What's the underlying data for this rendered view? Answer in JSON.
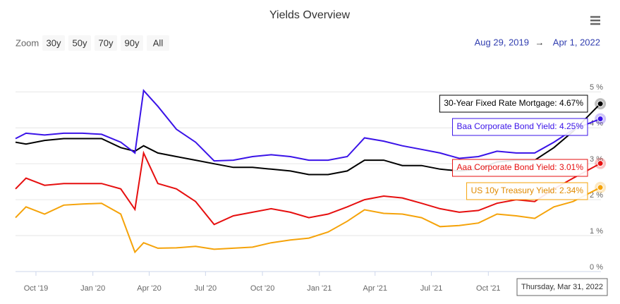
{
  "chart_data": {
    "type": "line",
    "title": "Yields Overview",
    "zoom": {
      "label": "Zoom",
      "buttons": [
        "30y",
        "50y",
        "70y",
        "90y",
        "All"
      ]
    },
    "range": {
      "from": "Aug 29, 2019",
      "arrow": "→",
      "to": "Apr 1, 2022"
    },
    "x": [
      "2019-08-29",
      "2019-09-15",
      "2019-10-15",
      "2019-11-15",
      "2019-12-15",
      "2020-01-15",
      "2020-02-15",
      "2020-03-09",
      "2020-03-23",
      "2020-04-15",
      "2020-05-15",
      "2020-06-15",
      "2020-07-15",
      "2020-08-15",
      "2020-09-15",
      "2020-10-15",
      "2020-11-15",
      "2020-12-15",
      "2021-01-15",
      "2021-02-15",
      "2021-03-15",
      "2021-04-15",
      "2021-05-15",
      "2021-06-15",
      "2021-07-15",
      "2021-08-15",
      "2021-09-15",
      "2021-10-15",
      "2021-11-15",
      "2021-12-15",
      "2022-01-15",
      "2022-02-15",
      "2022-03-31"
    ],
    "xlim": [
      "2019-08-29",
      "2022-04-01"
    ],
    "xticks": [
      {
        "value": "2019-10-01",
        "label": "Oct '19"
      },
      {
        "value": "2020-01-01",
        "label": "Jan '20"
      },
      {
        "value": "2020-04-01",
        "label": "Apr '20"
      },
      {
        "value": "2020-07-01",
        "label": "Jul '20"
      },
      {
        "value": "2020-10-01",
        "label": "Oct '20"
      },
      {
        "value": "2021-01-01",
        "label": "Jan '21"
      },
      {
        "value": "2021-04-01",
        "label": "Apr '21"
      },
      {
        "value": "2021-07-01",
        "label": "Jul '21"
      },
      {
        "value": "2021-10-01",
        "label": "Oct '21"
      }
    ],
    "ylim": [
      0,
      5.85
    ],
    "yticks": [
      {
        "value": 0,
        "label": "0 %"
      },
      {
        "value": 1,
        "label": "1 %"
      },
      {
        "value": 2,
        "label": "2 %"
      },
      {
        "value": 3,
        "label": "3 %"
      },
      {
        "value": 4,
        "label": "4 %"
      },
      {
        "value": 5,
        "label": "5 %"
      }
    ],
    "grid": true,
    "series": [
      {
        "color": "#000000",
        "values": [
          3.6,
          3.55,
          3.65,
          3.7,
          3.7,
          3.7,
          3.45,
          3.35,
          3.5,
          3.3,
          3.2,
          3.1,
          3.0,
          2.9,
          2.9,
          2.85,
          2.8,
          2.7,
          2.7,
          2.8,
          3.1,
          3.1,
          2.95,
          2.95,
          2.85,
          2.8,
          2.85,
          3.05,
          3.1,
          3.1,
          3.45,
          3.9,
          4.67
        ]
      },
      {
        "color": "#3a13e8",
        "values": [
          3.7,
          3.85,
          3.8,
          3.85,
          3.85,
          3.82,
          3.6,
          3.3,
          5.04,
          4.6,
          3.96,
          3.6,
          3.08,
          3.1,
          3.2,
          3.25,
          3.2,
          3.1,
          3.1,
          3.2,
          3.72,
          3.63,
          3.5,
          3.4,
          3.3,
          3.15,
          3.2,
          3.35,
          3.3,
          3.3,
          3.6,
          3.95,
          4.25
        ]
      },
      {
        "color": "#e60f0f",
        "values": [
          2.3,
          2.6,
          2.4,
          2.45,
          2.45,
          2.45,
          2.3,
          1.73,
          3.3,
          2.45,
          2.3,
          1.95,
          1.31,
          1.55,
          1.65,
          1.75,
          1.65,
          1.5,
          1.6,
          1.8,
          2.0,
          2.1,
          2.05,
          1.9,
          1.75,
          1.65,
          1.7,
          1.9,
          2.0,
          1.95,
          2.3,
          2.6,
          3.01
        ]
      },
      {
        "color": "#f5a30a",
        "values": [
          1.5,
          1.8,
          1.6,
          1.85,
          1.88,
          1.9,
          1.6,
          0.54,
          0.8,
          0.65,
          0.66,
          0.7,
          0.62,
          0.65,
          0.68,
          0.8,
          0.88,
          0.93,
          1.1,
          1.4,
          1.72,
          1.62,
          1.6,
          1.5,
          1.25,
          1.28,
          1.35,
          1.6,
          1.55,
          1.48,
          1.8,
          1.95,
          2.34
        ]
      }
    ],
    "tooltip": {
      "date": "Thursday, Mar 31, 2022",
      "labels": [
        "30-Year Fixed Rate Mortgage: 4.67%",
        "Baa Corporate Bond Yield: 4.25%",
        "Aaa Corporate Bond Yield: 3.01%",
        "US 10y Treasury Yield: 2.34%"
      ]
    }
  }
}
